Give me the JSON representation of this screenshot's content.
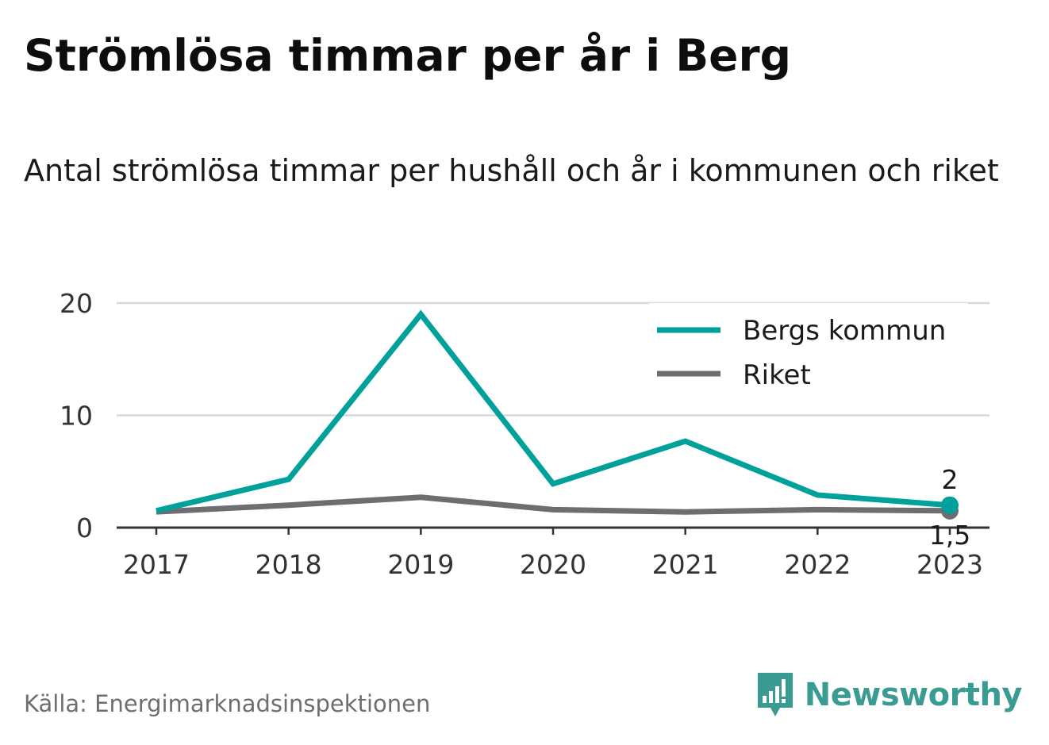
{
  "title": "Strömlösa timmar per år i Berg",
  "subtitle": "Antal strömlösa timmar per hushåll och år i kommunen och riket",
  "source": "Källa: Energimarknadsinspektionen",
  "brand": "Newsworthy",
  "colors": {
    "kommun": "#00a19a",
    "riket": "#6d6d72",
    "grid": "#d9d9d9",
    "brand": "#3a9b92"
  },
  "chart_data": {
    "type": "line",
    "x": [
      "2017",
      "2018",
      "2019",
      "2020",
      "2021",
      "2022",
      "2023"
    ],
    "ylim": [
      0,
      20
    ],
    "yticks": [
      "0",
      "10",
      "20"
    ],
    "grid": true,
    "legend_position": "top-right",
    "series": [
      {
        "name": "Bergs kommun",
        "color": "#00a19a",
        "values": [
          1.5,
          4.3,
          19.0,
          3.9,
          7.7,
          2.9,
          2.0
        ]
      },
      {
        "name": "Riket",
        "color": "#6d6d72",
        "values": [
          1.4,
          2.0,
          2.7,
          1.6,
          1.4,
          1.6,
          1.5
        ]
      }
    ],
    "end_labels": {
      "kommun": "2",
      "riket": "1,5"
    }
  }
}
